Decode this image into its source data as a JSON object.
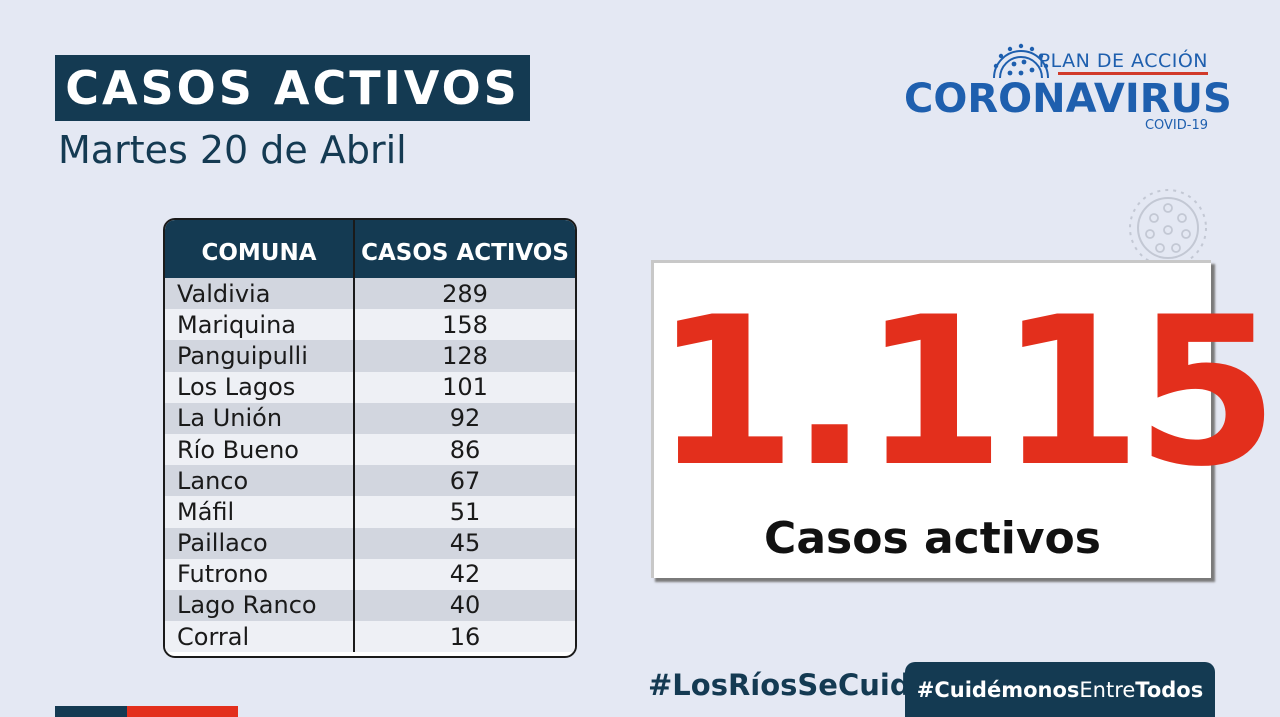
{
  "header": {
    "title": "CASOS ACTIVOS",
    "date": "Martes 20 de Abril"
  },
  "logo": {
    "plan": "PLAN DE ACCIÓN",
    "main": "CORONAVIRUS",
    "sub": "COVID-19",
    "icon": "virus-icon"
  },
  "table": {
    "headers": [
      "COMUNA",
      "CASOS ACTIVOS"
    ],
    "rows": [
      {
        "comuna": "Valdivia",
        "casos": "289"
      },
      {
        "comuna": "Mariquina",
        "casos": "158"
      },
      {
        "comuna": "Panguipulli",
        "casos": "128"
      },
      {
        "comuna": "Los Lagos",
        "casos": "101"
      },
      {
        "comuna": "La Unión",
        "casos": "92"
      },
      {
        "comuna": "Río Bueno",
        "casos": "86"
      },
      {
        "comuna": "Lanco",
        "casos": "67"
      },
      {
        "comuna": "Máfil",
        "casos": "51"
      },
      {
        "comuna": "Paillaco",
        "casos": "45"
      },
      {
        "comuna": "Futrono",
        "casos": "42"
      },
      {
        "comuna": "Lago Ranco",
        "casos": "40"
      },
      {
        "comuna": "Corral",
        "casos": "16"
      }
    ]
  },
  "total": {
    "number": "1.115",
    "label": "Casos activos"
  },
  "footer": {
    "hashtag1": "#LosRíosSeCuida",
    "hashtag2_a": "#Cuidémonos",
    "hashtag2_b": "Entre",
    "hashtag2_c": "Todos"
  },
  "colors": {
    "navy": "#143a52",
    "red": "#e32f1c",
    "background": "#e4e8f3",
    "logo_blue": "#1e5fae"
  }
}
